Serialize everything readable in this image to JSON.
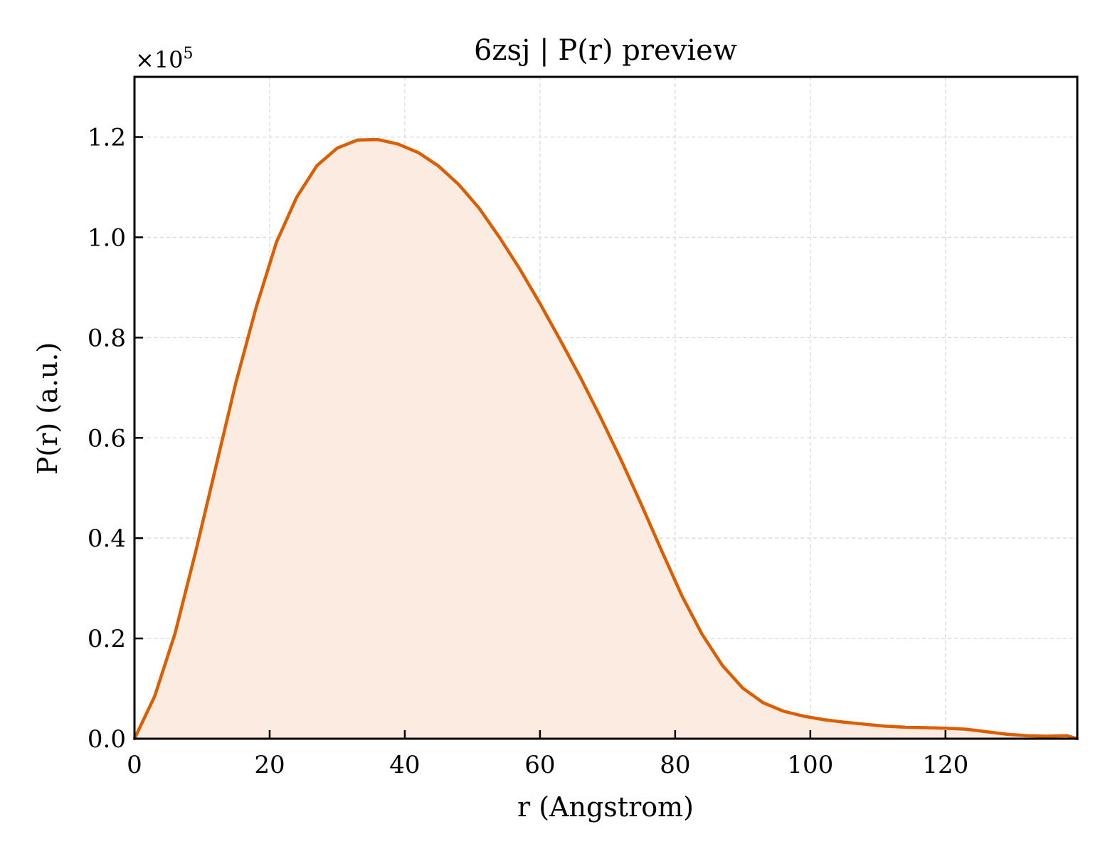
{
  "chart_data": {
    "type": "area",
    "title": "6zsj | P(r) preview",
    "xlabel": "r (Angstrom)",
    "ylabel": "P(r) (a.u.)",
    "y_scale_label": "×10",
    "y_scale_exponent": "5",
    "xlim": [
      0,
      139.5
    ],
    "ylim": [
      0,
      1.32
    ],
    "x_ticks": [
      0,
      20,
      40,
      60,
      80,
      100,
      120
    ],
    "x_tick_labels": [
      "0",
      "20",
      "40",
      "60",
      "80",
      "100",
      "120"
    ],
    "y_ticks": [
      0,
      0.2,
      0.4,
      0.6,
      0.8,
      1.0,
      1.2
    ],
    "y_tick_labels": [
      "0.0",
      "0.2",
      "0.4",
      "0.6",
      "0.8",
      "1.0",
      "1.2"
    ],
    "grid": true,
    "line_color": "#d95f02",
    "fill_color": "#fbebe0",
    "series": [
      {
        "x": [
          0,
          3,
          6,
          9,
          12,
          15,
          18,
          21,
          24,
          27,
          30,
          33,
          36,
          39,
          42,
          45,
          48,
          51,
          54,
          57,
          60,
          63,
          66,
          69,
          72,
          75,
          78,
          81,
          84,
          87,
          90,
          93,
          96,
          99,
          102,
          105,
          108,
          111,
          114,
          117,
          120,
          123,
          126,
          129,
          132,
          135,
          138,
          139.5
        ],
        "y": [
          0.0,
          0.085,
          0.21,
          0.37,
          0.54,
          0.71,
          0.86,
          0.99,
          1.08,
          1.143,
          1.178,
          1.194,
          1.195,
          1.186,
          1.169,
          1.142,
          1.105,
          1.058,
          1.0,
          0.937,
          0.868,
          0.795,
          0.72,
          0.64,
          0.556,
          0.467,
          0.375,
          0.285,
          0.208,
          0.146,
          0.101,
          0.072,
          0.055,
          0.045,
          0.038,
          0.033,
          0.029,
          0.025,
          0.023,
          0.022,
          0.021,
          0.019,
          0.014,
          0.009,
          0.006,
          0.005,
          0.006,
          0.0
        ]
      }
    ]
  }
}
